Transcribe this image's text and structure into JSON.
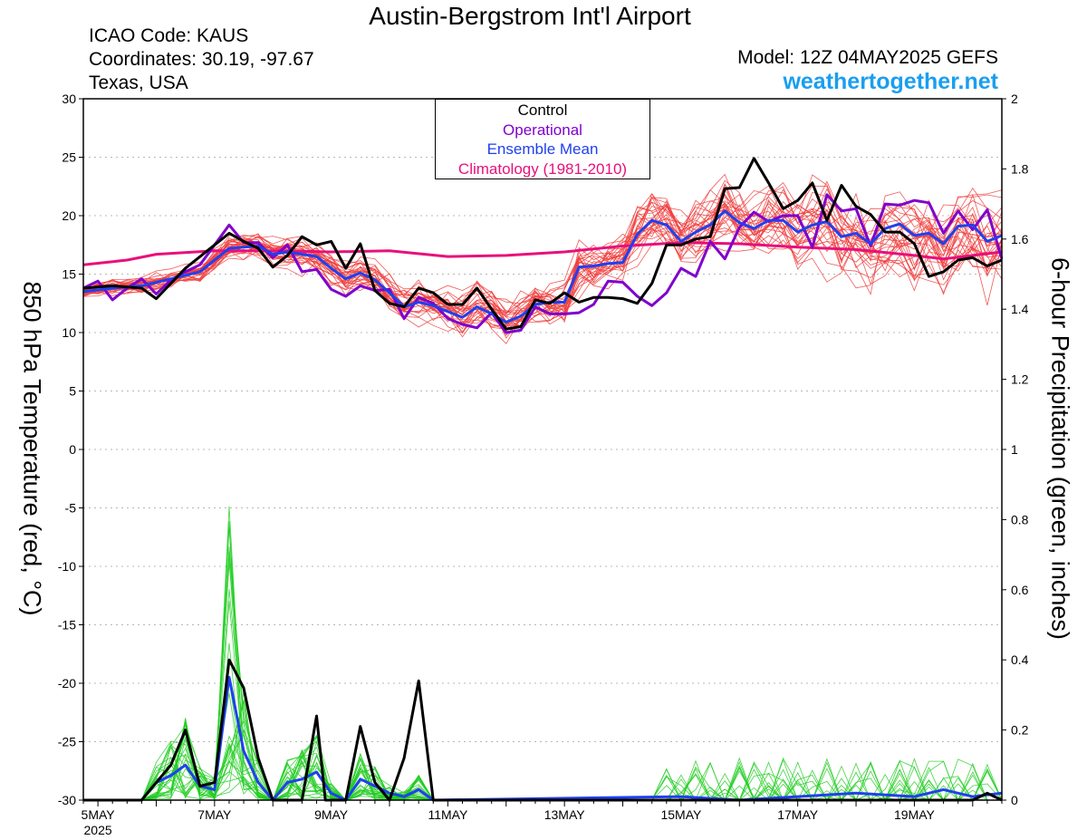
{
  "header": {
    "title": "Austin-Bergstrom Int'l Airport",
    "icao": "ICAO Code: KAUS",
    "coords": "Coordinates: 30.19, -97.67",
    "region": "Texas, USA",
    "model": "Model: 12Z 04MAY2025 GEFS",
    "site": "weathertogether.net"
  },
  "colors": {
    "control": "#000000",
    "operational": "#8000cc",
    "ensemble_mean": "#2040ee",
    "climatology": "#e8107a",
    "members_temp": "#f03c3c",
    "members_precip": "#22cc22",
    "site": "#1a9ef0"
  },
  "legend": {
    "control": "Control",
    "operational": "Operational",
    "mean": "Ensemble Mean",
    "climo": "Climatology (1981-2010)"
  },
  "chart_data": {
    "type": "line",
    "ylabel": "850 hPa Temperature (red, °C)",
    "y2label": "6-hour Precipitation (green, inches)",
    "ylim": [
      -30,
      30
    ],
    "y2lim": [
      0,
      2
    ],
    "yticks": [
      30,
      25,
      20,
      15,
      10,
      5,
      0,
      -5,
      -10,
      -15,
      -20,
      -25,
      -30
    ],
    "y2ticks": [
      2,
      1.8,
      1.6,
      1.4,
      1.2,
      1,
      0.8,
      0.6,
      0.4,
      0.2,
      0
    ],
    "x_unit": "days since 2025-05-05 00Z",
    "xlim": [
      -0.25,
      15.5
    ],
    "xticks": [
      {
        "x": 0,
        "label": "5MAY",
        "sub": "2025"
      },
      {
        "x": 2,
        "label": "7MAY",
        "sub": ""
      },
      {
        "x": 4,
        "label": "9MAY",
        "sub": ""
      },
      {
        "x": 6,
        "label": "11MAY",
        "sub": ""
      },
      {
        "x": 8,
        "label": "13MAY",
        "sub": ""
      },
      {
        "x": 10,
        "label": "15MAY",
        "sub": ""
      },
      {
        "x": 12,
        "label": "17MAY",
        "sub": ""
      },
      {
        "x": 14,
        "label": "19MAY",
        "sub": ""
      }
    ],
    "grid": true,
    "series": [
      {
        "name": "Control",
        "axis": "left",
        "points": [
          [
            -0.25,
            13.8
          ],
          [
            0.25,
            14
          ],
          [
            0.75,
            13.8
          ],
          [
            1.0,
            12.9
          ],
          [
            1.5,
            15.5
          ],
          [
            2.0,
            17.5
          ],
          [
            2.25,
            18.5
          ],
          [
            2.5,
            17.8
          ],
          [
            2.75,
            17.2
          ],
          [
            3.0,
            15.6
          ],
          [
            3.25,
            16.6
          ],
          [
            3.5,
            18.2
          ],
          [
            3.75,
            17.5
          ],
          [
            4.0,
            17.8
          ],
          [
            4.25,
            15.5
          ],
          [
            4.5,
            17.6
          ],
          [
            4.75,
            13.6
          ],
          [
            5.0,
            12.5
          ],
          [
            5.25,
            12.2
          ],
          [
            5.5,
            13.8
          ],
          [
            5.75,
            13.4
          ],
          [
            6.0,
            12.4
          ],
          [
            6.25,
            12.4
          ],
          [
            6.5,
            13.8
          ],
          [
            6.75,
            12
          ],
          [
            7.0,
            10.3
          ],
          [
            7.25,
            10.5
          ],
          [
            7.5,
            12.8
          ],
          [
            7.75,
            12.5
          ],
          [
            8.0,
            13.4
          ],
          [
            8.25,
            12.6
          ],
          [
            8.5,
            13
          ],
          [
            8.75,
            13
          ],
          [
            9.0,
            12.9
          ],
          [
            9.25,
            12.5
          ],
          [
            9.5,
            14.2
          ],
          [
            9.75,
            17.5
          ],
          [
            10.0,
            17.5
          ],
          [
            10.25,
            18
          ],
          [
            10.5,
            18.2
          ],
          [
            10.75,
            22.3
          ],
          [
            11.0,
            22.4
          ],
          [
            11.25,
            24.9
          ],
          [
            11.5,
            22.8
          ],
          [
            11.75,
            20.6
          ],
          [
            12.0,
            21.3
          ],
          [
            12.25,
            22.8
          ],
          [
            12.5,
            19.6
          ],
          [
            12.75,
            22.6
          ],
          [
            13.0,
            20.8
          ],
          [
            13.25,
            20.1
          ],
          [
            13.5,
            18.6
          ],
          [
            13.75,
            18.6
          ],
          [
            14.0,
            17.6
          ],
          [
            14.25,
            14.8
          ],
          [
            14.5,
            15.2
          ],
          [
            14.75,
            16.2
          ],
          [
            15.0,
            16.4
          ],
          [
            15.25,
            15.7
          ],
          [
            15.5,
            16.2
          ]
        ]
      },
      {
        "name": "Operational",
        "axis": "left",
        "points": [
          [
            -0.25,
            13.8
          ],
          [
            0.0,
            14.4
          ],
          [
            0.25,
            12.8
          ],
          [
            0.5,
            13.8
          ],
          [
            0.75,
            14.6
          ],
          [
            1.0,
            13.3
          ],
          [
            1.25,
            14.5
          ],
          [
            1.5,
            15.2
          ],
          [
            1.75,
            15.8
          ],
          [
            2.0,
            17.5
          ],
          [
            2.25,
            19.2
          ],
          [
            2.5,
            17.7
          ],
          [
            2.75,
            17.7
          ],
          [
            3.0,
            16.4
          ],
          [
            3.25,
            17.5
          ],
          [
            3.5,
            15.2
          ],
          [
            3.75,
            15.4
          ],
          [
            4.0,
            13.7
          ],
          [
            4.25,
            13.1
          ],
          [
            4.5,
            14
          ],
          [
            4.75,
            13.6
          ],
          [
            5.0,
            13.7
          ],
          [
            5.25,
            11.2
          ],
          [
            5.5,
            13
          ],
          [
            5.75,
            12.5
          ],
          [
            6.0,
            11.2
          ],
          [
            6.25,
            10.7
          ],
          [
            6.5,
            10.4
          ],
          [
            6.75,
            11.7
          ],
          [
            7.0,
            10
          ],
          [
            7.25,
            10.2
          ],
          [
            7.5,
            12.2
          ],
          [
            7.75,
            11.6
          ],
          [
            8.0,
            11.6
          ],
          [
            8.25,
            11.7
          ],
          [
            8.5,
            12.4
          ],
          [
            8.75,
            14.4
          ],
          [
            9.0,
            14.3
          ],
          [
            9.25,
            13.1
          ],
          [
            9.5,
            12.3
          ],
          [
            9.75,
            13.4
          ],
          [
            10.0,
            15.5
          ],
          [
            10.25,
            14.8
          ],
          [
            10.5,
            17.8
          ],
          [
            10.75,
            16.3
          ],
          [
            11.0,
            19
          ],
          [
            11.25,
            20.3
          ],
          [
            11.5,
            19.5
          ],
          [
            11.75,
            20
          ],
          [
            12.0,
            20
          ],
          [
            12.25,
            17.3
          ],
          [
            12.5,
            21.8
          ],
          [
            12.75,
            20.4
          ],
          [
            13.0,
            20.6
          ],
          [
            13.25,
            17.4
          ],
          [
            13.5,
            21
          ],
          [
            13.75,
            20.9
          ],
          [
            14.0,
            21.3
          ],
          [
            14.25,
            21.1
          ],
          [
            14.5,
            18.5
          ],
          [
            14.75,
            20.4
          ],
          [
            15.0,
            18.8
          ],
          [
            15.25,
            20.5
          ],
          [
            15.5,
            16.3
          ]
        ]
      },
      {
        "name": "Ensemble Mean",
        "axis": "left",
        "points": [
          [
            -0.25,
            13.5
          ],
          [
            0.25,
            13.8
          ],
          [
            0.75,
            14
          ],
          [
            1.25,
            14.6
          ],
          [
            1.75,
            15.2
          ],
          [
            2.25,
            17.2
          ],
          [
            2.75,
            17.4
          ],
          [
            3.0,
            16.7
          ],
          [
            3.25,
            16.9
          ],
          [
            3.75,
            16.5
          ],
          [
            4.0,
            15.5
          ],
          [
            4.25,
            14.6
          ],
          [
            4.5,
            15.1
          ],
          [
            4.75,
            14.5
          ],
          [
            5.0,
            13.4
          ],
          [
            5.25,
            12.2
          ],
          [
            5.5,
            12.6
          ],
          [
            5.75,
            12.3
          ],
          [
            6.0,
            11.8
          ],
          [
            6.25,
            11.3
          ],
          [
            6.5,
            12.2
          ],
          [
            6.75,
            11.6
          ],
          [
            7.0,
            10.9
          ],
          [
            7.25,
            11.4
          ],
          [
            7.5,
            12.4
          ],
          [
            7.75,
            12.6
          ],
          [
            8.0,
            12.6
          ],
          [
            8.25,
            15.6
          ],
          [
            8.5,
            15.7
          ],
          [
            8.75,
            15.9
          ],
          [
            9.0,
            16
          ],
          [
            9.25,
            18.4
          ],
          [
            9.5,
            19.6
          ],
          [
            9.75,
            19.2
          ],
          [
            10.0,
            17.8
          ],
          [
            10.25,
            18.6
          ],
          [
            10.5,
            19.2
          ],
          [
            10.75,
            20.4
          ],
          [
            11.0,
            19.4
          ],
          [
            11.25,
            18.9
          ],
          [
            11.5,
            19.6
          ],
          [
            11.75,
            19.6
          ],
          [
            12.0,
            18.6
          ],
          [
            12.25,
            19.2
          ],
          [
            12.5,
            19.5
          ],
          [
            12.75,
            18.2
          ],
          [
            13.0,
            18.5
          ],
          [
            13.25,
            17.6
          ],
          [
            13.5,
            18.9
          ],
          [
            13.75,
            19.3
          ],
          [
            14.0,
            18.3
          ],
          [
            14.25,
            18.5
          ],
          [
            14.5,
            17.6
          ],
          [
            14.75,
            19.1
          ],
          [
            15.0,
            19.2
          ],
          [
            15.25,
            17.8
          ],
          [
            15.5,
            18.3
          ]
        ]
      },
      {
        "name": "Climatology (1981-2010)",
        "axis": "left",
        "points": [
          [
            -0.25,
            15.8
          ],
          [
            0.5,
            16.2
          ],
          [
            1.0,
            16.7
          ],
          [
            2.0,
            17.0
          ],
          [
            3.0,
            17.0
          ],
          [
            4.0,
            16.9
          ],
          [
            5.0,
            17.0
          ],
          [
            6.0,
            16.5
          ],
          [
            7.0,
            16.6
          ],
          [
            8.0,
            16.9
          ],
          [
            9.0,
            17.4
          ],
          [
            10.0,
            17.7
          ],
          [
            11.0,
            17.6
          ],
          [
            12.0,
            17.3
          ],
          [
            13.0,
            17.1
          ],
          [
            14.0,
            16.6
          ],
          [
            14.5,
            16.3
          ],
          [
            15.5,
            16.9
          ]
        ]
      },
      {
        "name": "Control",
        "axis": "right",
        "points": [
          [
            -0.25,
            0
          ],
          [
            0.75,
            0
          ],
          [
            1.0,
            0.05
          ],
          [
            1.25,
            0.1
          ],
          [
            1.5,
            0.2
          ],
          [
            1.75,
            0.04
          ],
          [
            2.0,
            0.05
          ],
          [
            2.25,
            0.4
          ],
          [
            2.5,
            0.32
          ],
          [
            2.75,
            0.12
          ],
          [
            3.0,
            0
          ],
          [
            3.25,
            0.0
          ],
          [
            3.5,
            0.0
          ],
          [
            3.75,
            0.24
          ],
          [
            3.9,
            0
          ],
          [
            4.25,
            0
          ],
          [
            4.5,
            0.21
          ],
          [
            4.75,
            0.05
          ],
          [
            5.0,
            0.0
          ],
          [
            5.25,
            0.12
          ],
          [
            5.5,
            0.34
          ],
          [
            5.75,
            0
          ],
          [
            15.0,
            0
          ],
          [
            15.25,
            0.02
          ],
          [
            15.5,
            0.0
          ]
        ]
      },
      {
        "name": "Ensemble Mean",
        "axis": "right",
        "points": [
          [
            -0.25,
            0
          ],
          [
            0.75,
            0
          ],
          [
            1.0,
            0.05
          ],
          [
            1.25,
            0.07
          ],
          [
            1.5,
            0.1
          ],
          [
            1.75,
            0.04
          ],
          [
            2.0,
            0.03
          ],
          [
            2.25,
            0.35
          ],
          [
            2.5,
            0.14
          ],
          [
            2.75,
            0.05
          ],
          [
            3.0,
            0.0
          ],
          [
            3.25,
            0.05
          ],
          [
            3.5,
            0.06
          ],
          [
            3.75,
            0.08
          ],
          [
            4.0,
            0.02
          ],
          [
            4.25,
            0.0
          ],
          [
            4.5,
            0.06
          ],
          [
            4.75,
            0.04
          ],
          [
            5.0,
            0.02
          ],
          [
            5.25,
            0.01
          ],
          [
            5.5,
            0.03
          ],
          [
            5.75,
            0.0
          ],
          [
            10.0,
            0.01
          ],
          [
            11.0,
            0.0
          ],
          [
            12.0,
            0.01
          ],
          [
            13.0,
            0.02
          ],
          [
            14.0,
            0.01
          ],
          [
            14.5,
            0.03
          ],
          [
            14.75,
            0.02
          ],
          [
            15.0,
            0.01
          ],
          [
            15.5,
            0.02
          ]
        ]
      }
    ]
  }
}
